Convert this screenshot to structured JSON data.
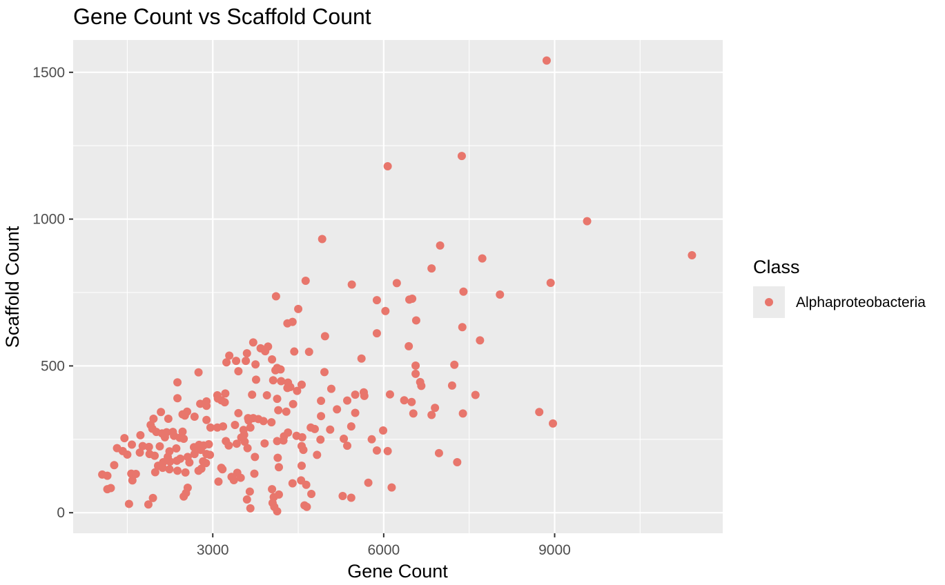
{
  "chart_data": {
    "type": "scatter",
    "title": "Gene Count vs Scaffold Count",
    "xlabel": "Gene Count",
    "ylabel": "Scaffold Count",
    "xlim": [
      550,
      11950
    ],
    "ylim": [
      -70,
      1610
    ],
    "x_ticks": [
      3000,
      6000,
      9000
    ],
    "x_minor_ticks": [
      1500,
      4500,
      7500,
      10500
    ],
    "y_ticks": [
      0,
      500,
      1000,
      1500
    ],
    "y_minor_ticks": [
      250,
      750,
      1250
    ],
    "grid": true,
    "legend": {
      "title": "Class",
      "position": "right",
      "entries": [
        "Alphaproteobacteria"
      ]
    },
    "series": [
      {
        "name": "Alphaproteobacteria",
        "color": "#E8766C",
        "points": [
          [
            8860,
            1540
          ],
          [
            7370,
            1215
          ],
          [
            6070,
            1180
          ],
          [
            9570,
            993
          ],
          [
            11410,
            877
          ],
          [
            4920,
            932
          ],
          [
            6990,
            910
          ],
          [
            7730,
            866
          ],
          [
            6840,
            832
          ],
          [
            8930,
            783
          ],
          [
            8040,
            743
          ],
          [
            4630,
            790
          ],
          [
            5440,
            777
          ],
          [
            6230,
            782
          ],
          [
            4110,
            737
          ],
          [
            5880,
            724
          ],
          [
            6500,
            729
          ],
          [
            6450,
            726
          ],
          [
            7400,
            753
          ],
          [
            4500,
            694
          ],
          [
            6030,
            687
          ],
          [
            6570,
            655
          ],
          [
            4400,
            650
          ],
          [
            4310,
            645
          ],
          [
            7380,
            632
          ],
          [
            5880,
            611
          ],
          [
            4970,
            601
          ],
          [
            7690,
            587
          ],
          [
            6440,
            567
          ],
          [
            3710,
            580
          ],
          [
            3970,
            566
          ],
          [
            3840,
            560
          ],
          [
            3920,
            550
          ],
          [
            4430,
            549
          ],
          [
            4690,
            548
          ],
          [
            3600,
            543
          ],
          [
            3290,
            535
          ],
          [
            5610,
            525
          ],
          [
            4040,
            522
          ],
          [
            3580,
            517
          ],
          [
            3410,
            517
          ],
          [
            3240,
            512
          ],
          [
            3750,
            505
          ],
          [
            6560,
            501
          ],
          [
            7240,
            504
          ],
          [
            4130,
            493
          ],
          [
            4190,
            488
          ],
          [
            4100,
            485
          ],
          [
            3450,
            482
          ],
          [
            4960,
            479
          ],
          [
            2750,
            478
          ],
          [
            6560,
            473
          ],
          [
            4060,
            451
          ],
          [
            4200,
            448
          ],
          [
            3760,
            453
          ],
          [
            4320,
            443
          ],
          [
            6640,
            445
          ],
          [
            4560,
            436
          ],
          [
            4360,
            428
          ],
          [
            5080,
            422
          ],
          [
            4480,
            415
          ],
          [
            4310,
            425
          ],
          [
            6660,
            432
          ],
          [
            7200,
            433
          ],
          [
            2380,
            444
          ],
          [
            5650,
            410
          ],
          [
            5500,
            402
          ],
          [
            3220,
            406
          ],
          [
            3080,
            400
          ],
          [
            3690,
            402
          ],
          [
            3950,
            400
          ],
          [
            5660,
            398
          ],
          [
            6110,
            403
          ],
          [
            7610,
            401
          ],
          [
            2380,
            390
          ],
          [
            3090,
            389
          ],
          [
            4130,
            388
          ],
          [
            3150,
            383
          ],
          [
            3210,
            376
          ],
          [
            2890,
            379
          ],
          [
            4900,
            381
          ],
          [
            5360,
            382
          ],
          [
            6360,
            383
          ],
          [
            6490,
            377
          ],
          [
            2780,
            371
          ],
          [
            2890,
            364
          ],
          [
            4410,
            370
          ],
          [
            5180,
            352
          ],
          [
            4150,
            349
          ],
          [
            4290,
            344
          ],
          [
            3450,
            339
          ],
          [
            5500,
            340
          ],
          [
            6520,
            338
          ],
          [
            6840,
            333
          ],
          [
            7390,
            338
          ],
          [
            8730,
            343
          ],
          [
            2550,
            344
          ],
          [
            2470,
            335
          ],
          [
            2510,
            331
          ],
          [
            2680,
            327
          ],
          [
            3620,
            322
          ],
          [
            3710,
            322
          ],
          [
            3800,
            319
          ],
          [
            3630,
            314
          ],
          [
            4030,
            308
          ],
          [
            3890,
            312
          ],
          [
            2090,
            343
          ],
          [
            1960,
            320
          ],
          [
            2220,
            320
          ],
          [
            2890,
            316
          ],
          [
            4900,
            329
          ],
          [
            6900,
            357
          ],
          [
            8970,
            304
          ],
          [
            1910,
            299
          ],
          [
            1940,
            286
          ],
          [
            2010,
            275
          ],
          [
            2110,
            270
          ],
          [
            2320,
            262
          ],
          [
            2160,
            257
          ],
          [
            2470,
            276
          ],
          [
            2490,
            252
          ],
          [
            2420,
            255
          ],
          [
            2300,
            275
          ],
          [
            2190,
            274
          ],
          [
            3080,
            290
          ],
          [
            3180,
            294
          ],
          [
            3540,
            282
          ],
          [
            3660,
            290
          ],
          [
            2960,
            290
          ],
          [
            3390,
            299
          ],
          [
            3550,
            265
          ],
          [
            4720,
            290
          ],
          [
            4790,
            285
          ],
          [
            5060,
            283
          ],
          [
            5430,
            294
          ],
          [
            5990,
            280
          ],
          [
            3500,
            256
          ],
          [
            3560,
            242
          ],
          [
            3420,
            235
          ],
          [
            4320,
            273
          ],
          [
            4250,
            260
          ],
          [
            4470,
            262
          ],
          [
            4570,
            257
          ],
          [
            4890,
            249
          ],
          [
            5300,
            252
          ],
          [
            5790,
            250
          ],
          [
            6070,
            210
          ],
          [
            1450,
            254
          ],
          [
            1580,
            232
          ],
          [
            1730,
            264
          ],
          [
            1770,
            227
          ],
          [
            1880,
            224
          ],
          [
            2070,
            226
          ],
          [
            2240,
            209
          ],
          [
            2360,
            219
          ],
          [
            2670,
            223
          ],
          [
            2760,
            231
          ],
          [
            2840,
            229
          ],
          [
            2790,
            214
          ],
          [
            2930,
            233
          ],
          [
            3230,
            244
          ],
          [
            3280,
            229
          ],
          [
            3610,
            220
          ],
          [
            3910,
            236
          ],
          [
            4130,
            244
          ],
          [
            4240,
            246
          ],
          [
            4560,
            227
          ],
          [
            5360,
            228
          ],
          [
            5880,
            212
          ],
          [
            1320,
            220
          ],
          [
            1420,
            210
          ],
          [
            1500,
            198
          ],
          [
            1720,
            205
          ],
          [
            1890,
            200
          ],
          [
            1980,
            194
          ],
          [
            2210,
            190
          ],
          [
            2430,
            184
          ],
          [
            2560,
            190
          ],
          [
            2680,
            200
          ],
          [
            2890,
            200
          ],
          [
            2950,
            197
          ],
          [
            3740,
            190
          ],
          [
            4140,
            187
          ],
          [
            4590,
            214
          ],
          [
            4830,
            197
          ],
          [
            6970,
            203
          ],
          [
            7290,
            172
          ],
          [
            2130,
            172
          ],
          [
            2250,
            174
          ],
          [
            2370,
            177
          ],
          [
            2590,
            171
          ],
          [
            2830,
            175
          ],
          [
            2880,
            169
          ],
          [
            3150,
            153
          ],
          [
            2040,
            160
          ],
          [
            2120,
            153
          ],
          [
            2240,
            148
          ],
          [
            2380,
            143
          ],
          [
            2520,
            137
          ],
          [
            2750,
            143
          ],
          [
            2800,
            150
          ],
          [
            4160,
            155
          ],
          [
            4560,
            160
          ],
          [
            1060,
            130
          ],
          [
            1150,
            126
          ],
          [
            1270,
            162
          ],
          [
            1570,
            133
          ],
          [
            1650,
            132
          ],
          [
            1990,
            138
          ],
          [
            3170,
            148
          ],
          [
            3330,
            122
          ],
          [
            3430,
            136
          ],
          [
            3490,
            119
          ],
          [
            3370,
            111
          ],
          [
            4550,
            110
          ],
          [
            5730,
            102
          ],
          [
            1590,
            110
          ],
          [
            1150,
            80
          ],
          [
            1210,
            84
          ],
          [
            2560,
            85
          ],
          [
            3100,
            106
          ],
          [
            3730,
            133
          ],
          [
            4400,
            100
          ],
          [
            6140,
            86
          ],
          [
            2490,
            55
          ],
          [
            2530,
            67
          ],
          [
            1950,
            50
          ],
          [
            3650,
            72
          ],
          [
            4040,
            80
          ],
          [
            4160,
            62
          ],
          [
            4070,
            53
          ],
          [
            4640,
            95
          ],
          [
            4730,
            64
          ],
          [
            5280,
            57
          ],
          [
            5430,
            51
          ],
          [
            3600,
            45
          ],
          [
            4050,
            33
          ],
          [
            4080,
            20
          ],
          [
            4610,
            25
          ],
          [
            4650,
            20
          ],
          [
            1530,
            30
          ],
          [
            1870,
            28
          ],
          [
            3660,
            15
          ],
          [
            4130,
            5
          ]
        ]
      }
    ]
  }
}
